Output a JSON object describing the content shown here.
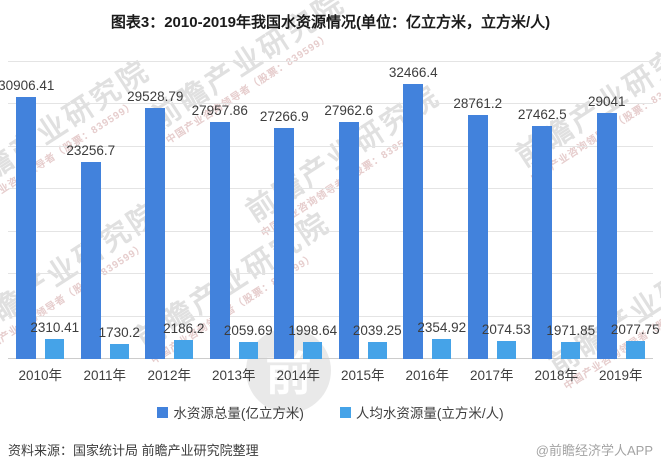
{
  "title": "图表3：2010-2019年我国水资源情况(单位：亿立方米，立方米/人)",
  "chart_data": {
    "type": "bar",
    "title": "图表3：2010-2019年我国水资源情况(单位：亿立方米，立方米/人)",
    "categories": [
      "2010年",
      "2011年",
      "2012年",
      "2013年",
      "2014年",
      "2015年",
      "2016年",
      "2017年",
      "2018年",
      "2019年"
    ],
    "series": [
      {
        "name": "水资源总量(亿立方米)",
        "color": "#4282DC",
        "values": [
          30906.41,
          23256.7,
          29528.79,
          27957.86,
          27266.9,
          27962.6,
          32466.4,
          28761.2,
          27462.5,
          29041
        ]
      },
      {
        "name": "人均水资源量(立方米/人)",
        "color": "#45A3E8",
        "values": [
          2310.41,
          1730.2,
          2186.2,
          2059.69,
          1998.64,
          2039.25,
          2354.92,
          2074.53,
          1971.85,
          2077.75
        ]
      }
    ],
    "xlabel": "",
    "ylabel": "",
    "ylim": [
      0,
      35000
    ],
    "gridline_step": 5000,
    "grid": true,
    "y_axis_labels_visible": false,
    "value_labels": true,
    "legend_position": "bottom"
  },
  "footer": {
    "source": "资料来源：国家统计局 前瞻产业研究院整理",
    "credit": "@前瞻经济学人APP"
  },
  "watermark": {
    "text": "前瞻产业研究院",
    "subtext": "中国产业咨询领导者（股票：839599）",
    "logo_text": "前"
  }
}
